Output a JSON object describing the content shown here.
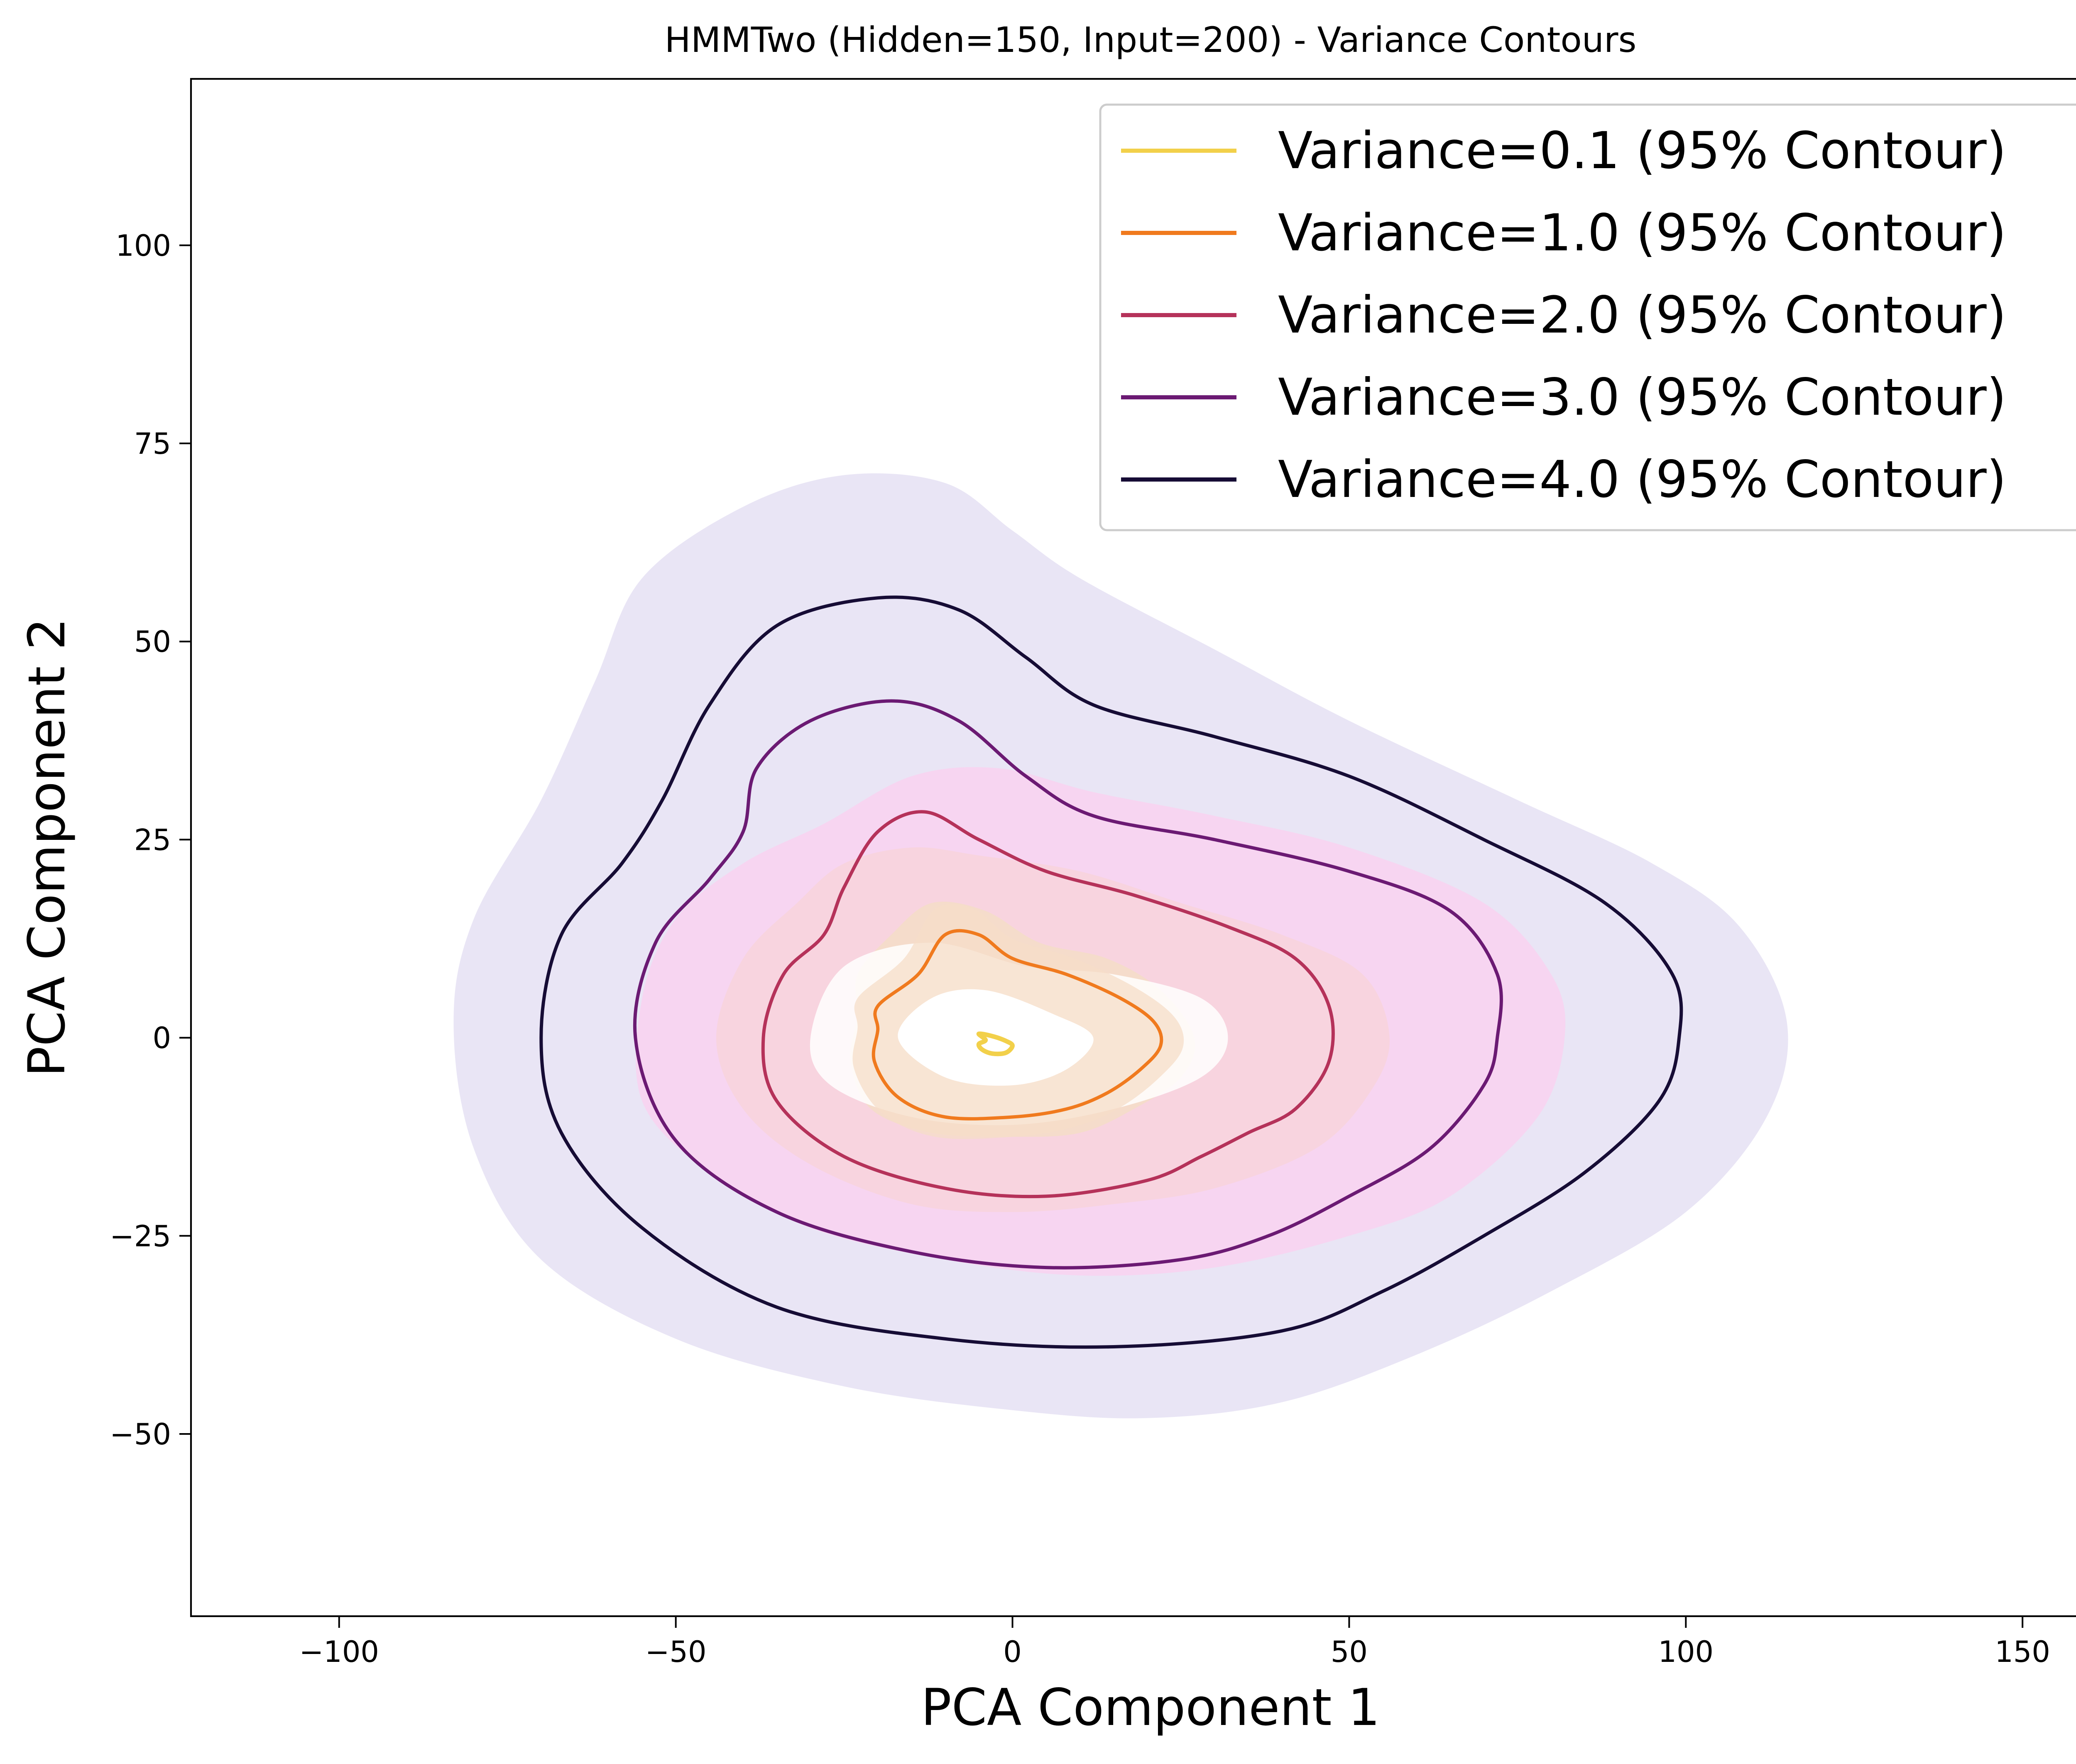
{
  "chart_data": {
    "type": "contour",
    "title": "HMMTwo (Hidden=150, Input=200) - Variance Contours",
    "xlabel": "PCA Component 1",
    "ylabel": "PCA Component 2",
    "xlim": [
      -122,
      163
    ],
    "ylim": [
      -73,
      121
    ],
    "xticks": [
      -100,
      -50,
      0,
      50,
      100,
      150
    ],
    "yticks": [
      -50,
      -25,
      0,
      25,
      50,
      75,
      100
    ],
    "xtick_labels": [
      "−100",
      "−50",
      "0",
      "50",
      "100",
      "150"
    ],
    "ytick_labels": [
      "−50",
      "−25",
      "0",
      "25",
      "50",
      "75",
      "100"
    ],
    "grid": false,
    "legend_position": "top-right",
    "series": [
      {
        "name": "Variance=0.1 (95% Contour)",
        "color": "#f2d04a",
        "fill_color": "#fde9b3",
        "contour": [
          [
            -5,
            0.5
          ],
          [
            -3,
            0.2
          ],
          [
            -1,
            -0.4
          ],
          [
            0,
            -1
          ],
          [
            -1,
            -1.9
          ],
          [
            -3,
            -2
          ],
          [
            -4.5,
            -1.5
          ],
          [
            -5,
            -0.8
          ],
          [
            -4,
            -0.3
          ]
        ],
        "fill": [
          [
            -5,
            0.5
          ],
          [
            -3,
            0.2
          ],
          [
            -1,
            -0.4
          ],
          [
            0,
            -1
          ],
          [
            -1,
            -1.9
          ],
          [
            -3,
            -2
          ],
          [
            -4.5,
            -1.5
          ],
          [
            -5,
            -0.8
          ],
          [
            -4,
            -0.3
          ]
        ]
      },
      {
        "name": "Variance=1.0 (95% Contour)",
        "color": "#f07a1e",
        "fill_color": "#f5ddc8",
        "contour": [
          [
            -20,
            4
          ],
          [
            -14,
            8
          ],
          [
            -10,
            13
          ],
          [
            -5,
            13
          ],
          [
            0,
            10
          ],
          [
            8,
            8
          ],
          [
            16,
            5
          ],
          [
            21,
            2
          ],
          [
            22,
            -1
          ],
          [
            19,
            -4
          ],
          [
            14,
            -7
          ],
          [
            8,
            -9
          ],
          [
            0,
            -10
          ],
          [
            -10,
            -10
          ],
          [
            -17,
            -7.5
          ],
          [
            -20.5,
            -3
          ],
          [
            -20,
            1
          ]
        ],
        "fill": [
          [
            -23,
            8
          ],
          [
            -18,
            13
          ],
          [
            -12,
            17
          ],
          [
            -4,
            16
          ],
          [
            4,
            12
          ],
          [
            14,
            10
          ],
          [
            22,
            6
          ],
          [
            27,
            0
          ],
          [
            25,
            -5
          ],
          [
            18,
            -9
          ],
          [
            10,
            -12
          ],
          [
            0,
            -12.5
          ],
          [
            -12,
            -12
          ],
          [
            -21,
            -9
          ],
          [
            -24,
            -3
          ],
          [
            -23,
            3
          ]
        ]
      },
      {
        "name": "Variance=2.0 (95% Contour)",
        "color": "#b5325a",
        "fill_color": "#f8d3dc",
        "contour": [
          [
            -37,
            0
          ],
          [
            -34,
            8
          ],
          [
            -28,
            13
          ],
          [
            -25,
            19
          ],
          [
            -20,
            26
          ],
          [
            -13,
            28.5
          ],
          [
            -5,
            25
          ],
          [
            5,
            21
          ],
          [
            18,
            18
          ],
          [
            32,
            14
          ],
          [
            42,
            10
          ],
          [
            47,
            4
          ],
          [
            47,
            -3
          ],
          [
            42,
            -9
          ],
          [
            35,
            -12
          ],
          [
            28,
            -15
          ],
          [
            20,
            -18
          ],
          [
            5,
            -20
          ],
          [
            -10,
            -19
          ],
          [
            -25,
            -15
          ],
          [
            -35,
            -8
          ]
        ],
        "fill": [
          [
            -44,
            0
          ],
          [
            -40,
            10
          ],
          [
            -32,
            17
          ],
          [
            -25,
            22
          ],
          [
            -15,
            24
          ],
          [
            -5,
            23
          ],
          [
            10,
            21
          ],
          [
            25,
            17
          ],
          [
            40,
            13
          ],
          [
            52,
            8
          ],
          [
            56,
            0
          ],
          [
            53,
            -7
          ],
          [
            45,
            -14
          ],
          [
            30,
            -19
          ],
          [
            15,
            -21
          ],
          [
            0,
            -22
          ],
          [
            -15,
            -21
          ],
          [
            -30,
            -16
          ],
          [
            -40,
            -9
          ]
        ]
      },
      {
        "name": "Variance=3.0 (95% Contour)",
        "color": "#6b1a73",
        "fill_color": "#f9d2f0",
        "contour": [
          [
            -56,
            0
          ],
          [
            -53,
            12
          ],
          [
            -45,
            20
          ],
          [
            -40,
            26
          ],
          [
            -38,
            34
          ],
          [
            -30,
            40
          ],
          [
            -18,
            42.5
          ],
          [
            -8,
            40
          ],
          [
            2,
            33
          ],
          [
            12,
            28
          ],
          [
            30,
            25
          ],
          [
            50,
            21
          ],
          [
            65,
            16
          ],
          [
            72,
            8
          ],
          [
            72,
            0
          ],
          [
            70,
            -6
          ],
          [
            62,
            -14
          ],
          [
            50,
            -20
          ],
          [
            38,
            -25
          ],
          [
            25,
            -28
          ],
          [
            5,
            -29
          ],
          [
            -15,
            -27
          ],
          [
            -35,
            -22
          ],
          [
            -50,
            -13
          ]
        ],
        "fill": [
          [
            -55,
            5
          ],
          [
            -50,
            15
          ],
          [
            -40,
            22
          ],
          [
            -28,
            27
          ],
          [
            -15,
            33
          ],
          [
            -2,
            34
          ],
          [
            12,
            31
          ],
          [
            30,
            28
          ],
          [
            50,
            24
          ],
          [
            70,
            17
          ],
          [
            80,
            8
          ],
          [
            82,
            0
          ],
          [
            78,
            -10
          ],
          [
            65,
            -20
          ],
          [
            50,
            -25
          ],
          [
            30,
            -29
          ],
          [
            10,
            -30
          ],
          [
            -10,
            -28
          ],
          [
            -30,
            -24
          ],
          [
            -45,
            -17
          ],
          [
            -55,
            -8
          ]
        ]
      },
      {
        "name": "Variance=4.0 (95% Contour)",
        "color": "#160c35",
        "fill_color": "#e5e0f3",
        "contour": [
          [
            -70,
            0
          ],
          [
            -67,
            13
          ],
          [
            -58,
            22
          ],
          [
            -52,
            30
          ],
          [
            -45,
            42
          ],
          [
            -35,
            52
          ],
          [
            -20,
            55.5
          ],
          [
            -8,
            54
          ],
          [
            2,
            48
          ],
          [
            12,
            42
          ],
          [
            30,
            38
          ],
          [
            50,
            33
          ],
          [
            70,
            25
          ],
          [
            88,
            17
          ],
          [
            98,
            8
          ],
          [
            99,
            0
          ],
          [
            96,
            -8
          ],
          [
            85,
            -17
          ],
          [
            70,
            -25
          ],
          [
            55,
            -32
          ],
          [
            40,
            -37
          ],
          [
            15,
            -39
          ],
          [
            -10,
            -38
          ],
          [
            -35,
            -34
          ],
          [
            -55,
            -24
          ],
          [
            -67,
            -12
          ]
        ],
        "fill": [
          [
            -83,
            2
          ],
          [
            -80,
            15
          ],
          [
            -70,
            30
          ],
          [
            -62,
            45
          ],
          [
            -55,
            58
          ],
          [
            -40,
            67
          ],
          [
            -25,
            71
          ],
          [
            -10,
            70
          ],
          [
            0,
            64
          ],
          [
            10,
            58
          ],
          [
            30,
            49
          ],
          [
            50,
            40
          ],
          [
            75,
            30
          ],
          [
            95,
            22
          ],
          [
            108,
            14
          ],
          [
            115,
            2
          ],
          [
            112,
            -10
          ],
          [
            100,
            -22
          ],
          [
            80,
            -32
          ],
          [
            60,
            -40
          ],
          [
            40,
            -46
          ],
          [
            20,
            -48
          ],
          [
            0,
            -47
          ],
          [
            -25,
            -44
          ],
          [
            -50,
            -38
          ],
          [
            -70,
            -28
          ],
          [
            -80,
            -14
          ]
        ]
      }
    ]
  }
}
